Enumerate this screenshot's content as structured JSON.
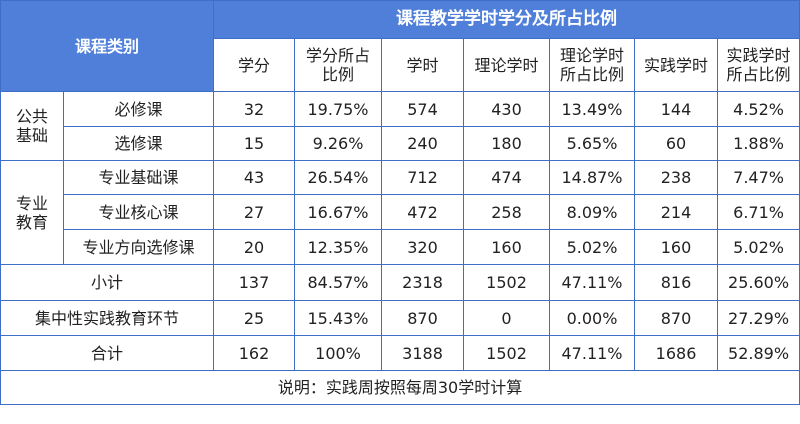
{
  "table": {
    "title": "课程教学学时学分及所占比例",
    "course_category_header": "课程类别",
    "columns": [
      "学分",
      "学分所占比例",
      "学时",
      "理论学时",
      "理论学时所占比例",
      "实践学时",
      "实践学时所占比例"
    ],
    "column_lines": [
      [
        "学分"
      ],
      [
        "学分所占",
        "比例"
      ],
      [
        "学时"
      ],
      [
        "理论学时"
      ],
      [
        "理论学时",
        "所占比例"
      ],
      [
        "实践学时"
      ],
      [
        "实践学时",
        "所占比例"
      ]
    ],
    "groups": [
      {
        "name_lines": [
          "公共",
          "基础"
        ]
      },
      {
        "name_lines": [
          "专业",
          "教育"
        ]
      }
    ],
    "rows": [
      {
        "label": "必修课",
        "values": [
          "32",
          "19.75%",
          "574",
          "430",
          "13.49%",
          "144",
          "4.52%"
        ]
      },
      {
        "label": "选修课",
        "values": [
          "15",
          "9.26%",
          "240",
          "180",
          "5.65%",
          "60",
          "1.88%"
        ]
      },
      {
        "label": "专业基础课",
        "values": [
          "43",
          "26.54%",
          "712",
          "474",
          "14.87%",
          "238",
          "7.47%"
        ]
      },
      {
        "label": "专业核心课",
        "values": [
          "27",
          "16.67%",
          "472",
          "258",
          "8.09%",
          "214",
          "6.71%"
        ]
      },
      {
        "label": "专业方向选修课",
        "values": [
          "20",
          "12.35%",
          "320",
          "160",
          "5.02%",
          "160",
          "5.02%"
        ]
      },
      {
        "label": "小计",
        "values": [
          "137",
          "84.57%",
          "2318",
          "1502",
          "47.11%",
          "816",
          "25.60%"
        ]
      },
      {
        "label": "集中性实践教育环节",
        "values": [
          "25",
          "15.43%",
          "870",
          "0",
          "0.00%",
          "870",
          "27.29%"
        ]
      },
      {
        "label": "合计",
        "values": [
          "162",
          "100%",
          "3188",
          "1502",
          "47.11%",
          "1686",
          "52.89%"
        ]
      }
    ],
    "note": "说明：实践周按照每周30学时计算"
  },
  "colors": {
    "header_bg": "#4f7fd9",
    "border": "#3f6fc4",
    "header_text": "#ffffff",
    "body_text": "#222222"
  }
}
